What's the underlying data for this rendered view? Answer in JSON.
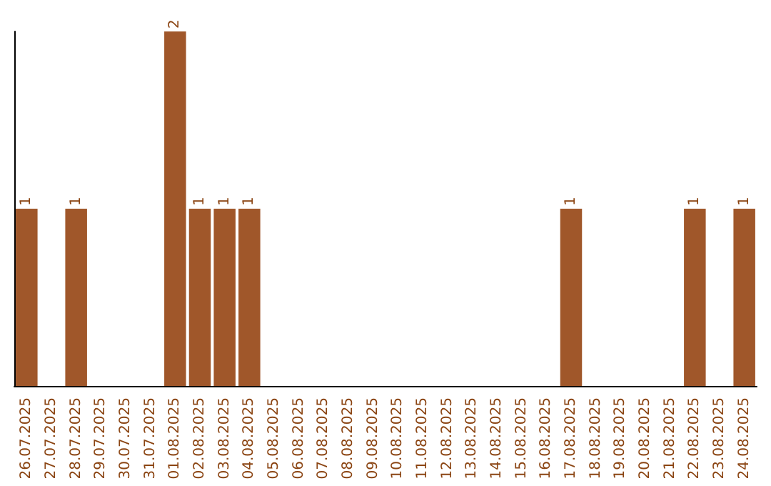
{
  "chart_data": {
    "type": "bar",
    "categories": [
      "26.07.2025",
      "27.07.2025",
      "28.07.2025",
      "29.07.2025",
      "30.07.2025",
      "31.07.2025",
      "01.08.2025",
      "02.08.2025",
      "03.08.2025",
      "04.08.2025",
      "05.08.2025",
      "06.08.2025",
      "07.08.2025",
      "08.08.2025",
      "09.08.2025",
      "10.08.2025",
      "11.08.2025",
      "12.08.2025",
      "13.08.2025",
      "14.08.2025",
      "15.08.2025",
      "16.08.2025",
      "17.08.2025",
      "18.08.2025",
      "19.08.2025",
      "20.08.2025",
      "21.08.2025",
      "22.08.2025",
      "23.08.2025",
      "24.08.2025"
    ],
    "values": [
      1,
      0,
      1,
      0,
      0,
      0,
      2,
      1,
      1,
      1,
      0,
      0,
      0,
      0,
      0,
      0,
      0,
      0,
      0,
      0,
      0,
      0,
      1,
      0,
      0,
      0,
      0,
      1,
      0,
      1
    ],
    "value_labels": [
      "1",
      null,
      "1",
      null,
      null,
      null,
      "2",
      "1",
      "1",
      "1",
      null,
      null,
      null,
      null,
      null,
      null,
      null,
      null,
      null,
      null,
      null,
      null,
      "1",
      null,
      null,
      null,
      null,
      "1",
      null,
      "1"
    ],
    "color": "#a0572a",
    "grid": false
  }
}
